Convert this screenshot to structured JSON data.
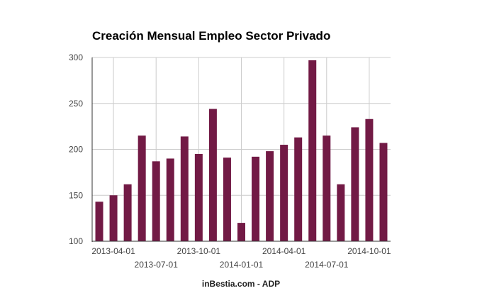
{
  "chart_data": {
    "type": "bar",
    "title": "Creación Mensual Empleo Sector Privado",
    "source_note": "inBestia.com - ADP",
    "xlabel": "",
    "ylabel": "",
    "ylim": [
      100,
      300
    ],
    "yticks": [
      100,
      150,
      200,
      250,
      300
    ],
    "grid": true,
    "legend": "none",
    "color": "#721a45",
    "categories": [
      "2013-03-01",
      "2013-04-01",
      "2013-05-01",
      "2013-06-01",
      "2013-07-01",
      "2013-08-01",
      "2013-09-01",
      "2013-10-01",
      "2013-11-01",
      "2013-12-01",
      "2014-01-01",
      "2014-02-01",
      "2014-03-01",
      "2014-04-01",
      "2014-05-01",
      "2014-06-01",
      "2014-07-01",
      "2014-08-01",
      "2014-09-01",
      "2014-10-01",
      "2014-11-01"
    ],
    "xtick_labels": [
      "2013-04-01",
      "2013-07-01",
      "2013-10-01",
      "2014-01-01",
      "2014-04-01",
      "2014-07-01",
      "2014-10-01"
    ],
    "values": [
      143,
      150,
      162,
      215,
      187,
      190,
      214,
      195,
      244,
      191,
      120,
      192,
      198,
      205,
      213,
      297,
      215,
      162,
      224,
      233,
      207
    ]
  }
}
